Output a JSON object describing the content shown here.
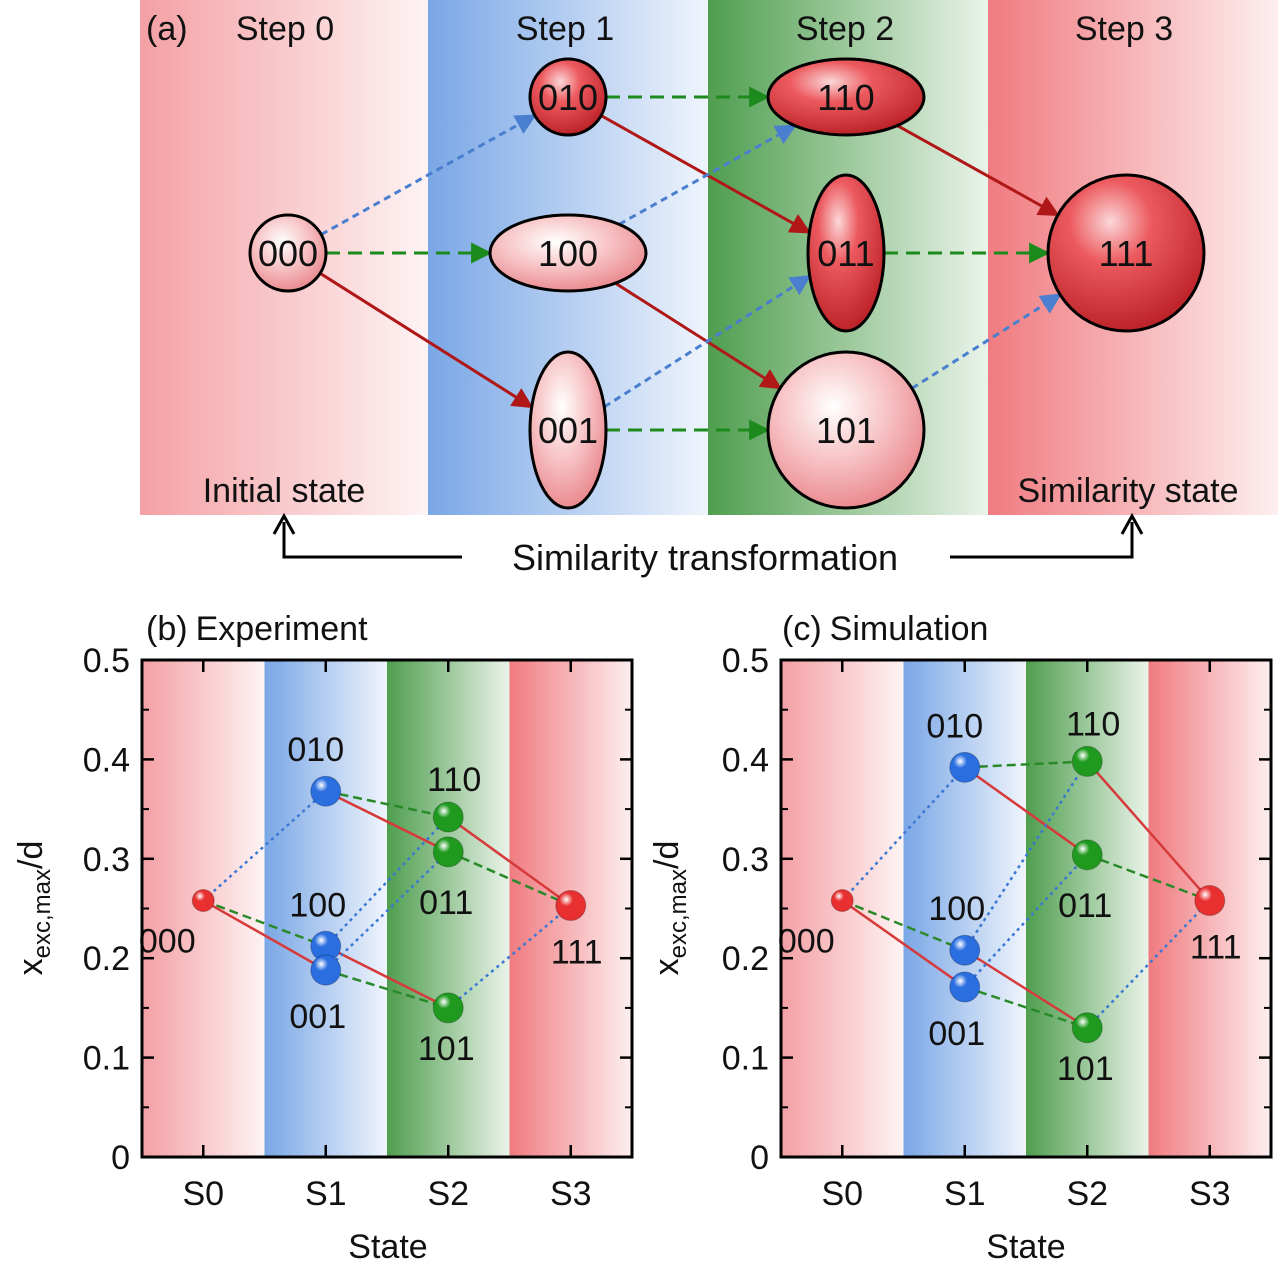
{
  "panel_a": {
    "label": "(a)",
    "steps": [
      "Step 0",
      "Step 1",
      "Step 2",
      "Step 3"
    ],
    "step_colors": [
      "#f4a0a4",
      "#7aa7e6",
      "#4f9e4f",
      "#f07b80"
    ],
    "initial_label": "Initial state",
    "final_label": "Similarity state",
    "transform_label": "Similarity transformation",
    "nodes": [
      {
        "id": "000",
        "step": 0
      },
      {
        "id": "010",
        "step": 1
      },
      {
        "id": "100",
        "step": 1
      },
      {
        "id": "001",
        "step": 1
      },
      {
        "id": "110",
        "step": 2
      },
      {
        "id": "011",
        "step": 2
      },
      {
        "id": "101",
        "step": 2
      },
      {
        "id": "111",
        "step": 3
      }
    ],
    "edges": [
      {
        "from": "000",
        "to": "010",
        "kind": "blue"
      },
      {
        "from": "000",
        "to": "100",
        "kind": "green"
      },
      {
        "from": "000",
        "to": "001",
        "kind": "red"
      },
      {
        "from": "010",
        "to": "110",
        "kind": "green"
      },
      {
        "from": "010",
        "to": "011",
        "kind": "red"
      },
      {
        "from": "100",
        "to": "110",
        "kind": "blue"
      },
      {
        "from": "100",
        "to": "101",
        "kind": "red"
      },
      {
        "from": "001",
        "to": "011",
        "kind": "blue"
      },
      {
        "from": "001",
        "to": "101",
        "kind": "green"
      },
      {
        "from": "110",
        "to": "111",
        "kind": "red"
      },
      {
        "from": "011",
        "to": "111",
        "kind": "green"
      },
      {
        "from": "101",
        "to": "111",
        "kind": "blue"
      }
    ],
    "edge_colors": {
      "red": "#b01818",
      "green": "#1c8a1c",
      "blue": "#4a7fd0"
    }
  },
  "panels": [
    {
      "label": "(b)",
      "title": "Experiment",
      "chart_data": {
        "type": "scatter",
        "x_categories": [
          "S0",
          "S1",
          "S2",
          "S3"
        ],
        "xlabel": "State",
        "ylabel_main": "x",
        "ylabel_sub": "exc,max",
        "ylabel_tail": "/d",
        "ylim": [
          0,
          0.5
        ],
        "yticks": [
          "0",
          "0.1",
          "0.2",
          "0.3",
          "0.4",
          "0.5"
        ],
        "points": [
          {
            "label": "000",
            "state": 0,
            "y": 0.258
          },
          {
            "label": "010",
            "state": 1,
            "y": 0.368
          },
          {
            "label": "100",
            "state": 1,
            "y": 0.212
          },
          {
            "label": "001",
            "state": 1,
            "y": 0.188
          },
          {
            "label": "110",
            "state": 2,
            "y": 0.342
          },
          {
            "label": "011",
            "state": 2,
            "y": 0.307
          },
          {
            "label": "101",
            "state": 2,
            "y": 0.15
          },
          {
            "label": "111",
            "state": 3,
            "y": 0.253
          }
        ]
      }
    },
    {
      "label": "(c)",
      "title": "Simulation",
      "chart_data": {
        "type": "scatter",
        "x_categories": [
          "S0",
          "S1",
          "S2",
          "S3"
        ],
        "xlabel": "State",
        "ylabel_main": "x",
        "ylabel_sub": "exc,max",
        "ylabel_tail": "/d",
        "ylim": [
          0,
          0.5
        ],
        "yticks": [
          "0",
          "0.1",
          "0.2",
          "0.3",
          "0.4",
          "0.5"
        ],
        "points": [
          {
            "label": "000",
            "state": 0,
            "y": 0.258
          },
          {
            "label": "010",
            "state": 1,
            "y": 0.392
          },
          {
            "label": "100",
            "state": 1,
            "y": 0.208
          },
          {
            "label": "001",
            "state": 1,
            "y": 0.171
          },
          {
            "label": "110",
            "state": 2,
            "y": 0.398
          },
          {
            "label": "011",
            "state": 2,
            "y": 0.304
          },
          {
            "label": "101",
            "state": 2,
            "y": 0.13
          },
          {
            "label": "111",
            "state": 3,
            "y": 0.258
          }
        ]
      }
    }
  ],
  "point_colors": {
    "S0": "#e83030",
    "S1": "#2a6ee0",
    "S2": "#1f9a1f",
    "S3": "#e83030"
  }
}
